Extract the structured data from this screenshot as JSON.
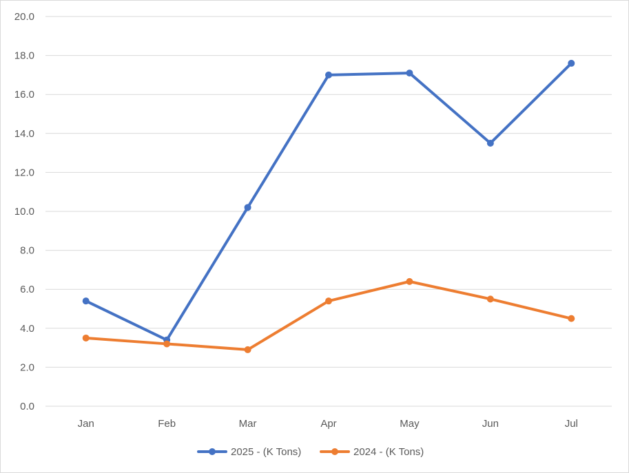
{
  "chart_data": {
    "type": "line",
    "categories": [
      "Jan",
      "Feb",
      "Mar",
      "Apr",
      "May",
      "Jun",
      "Jul"
    ],
    "series": [
      {
        "name": "2025 - (K Tons)",
        "color": "#4472c4",
        "values": [
          5.4,
          3.4,
          10.2,
          17.0,
          17.1,
          13.5,
          17.6
        ]
      },
      {
        "name": "2024 - (K Tons)",
        "color": "#ed7d31",
        "values": [
          3.5,
          3.2,
          2.9,
          5.4,
          6.4,
          5.5,
          4.5
        ]
      }
    ],
    "ylim": [
      0,
      20
    ],
    "ytick_labels": [
      "0.0",
      "2.0",
      "4.0",
      "6.0",
      "8.0",
      "10.0",
      "12.0",
      "14.0",
      "16.0",
      "18.0",
      "20.0"
    ],
    "grid": true,
    "legend_position": "bottom"
  }
}
